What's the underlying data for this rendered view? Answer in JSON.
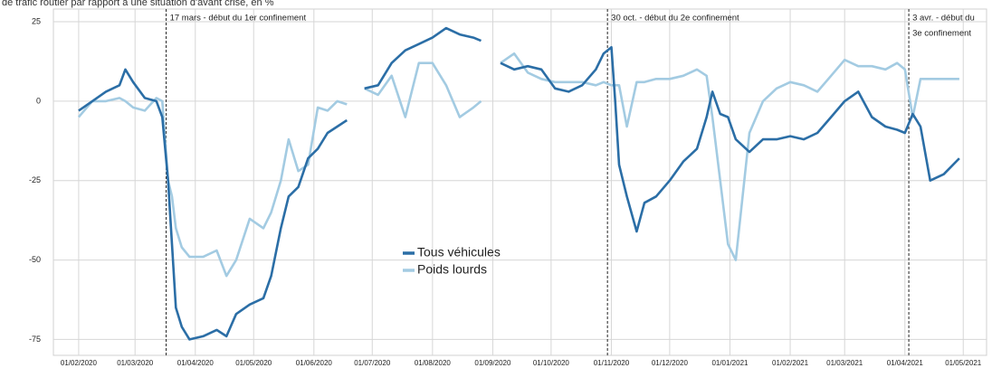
{
  "chart_data": {
    "type": "line",
    "title": "de trafic routier par rapport à une situation d'avant crise, en %",
    "x": [
      "2020-02-01",
      "2020-02-08",
      "2020-02-15",
      "2020-02-22",
      "2020-02-25",
      "2020-02-29",
      "2020-03-06",
      "2020-03-12",
      "2020-03-15",
      "2020-03-18",
      "2020-03-20",
      "2020-03-22",
      "2020-03-25",
      "2020-03-29",
      "2020-04-05",
      "2020-04-12",
      "2020-04-17",
      "2020-04-22",
      "2020-04-29",
      "2020-05-06",
      "2020-05-10",
      "2020-05-15",
      "2020-05-19",
      "2020-05-24",
      "2020-05-29",
      "2020-06-03",
      "2020-06-08",
      "2020-06-13",
      "2020-06-18",
      "2020-06-22",
      "2020-06-27",
      "2020-07-04",
      "2020-07-11",
      "2020-07-18",
      "2020-07-25",
      "2020-08-01",
      "2020-08-08",
      "2020-08-15",
      "2020-08-22",
      "2020-08-26",
      "2020-08-31",
      "2020-09-05",
      "2020-09-12",
      "2020-09-19",
      "2020-09-26",
      "2020-10-03",
      "2020-10-10",
      "2020-10-17",
      "2020-10-24",
      "2020-10-28",
      "2020-11-01",
      "2020-11-03",
      "2020-11-05",
      "2020-11-09",
      "2020-11-14",
      "2020-11-18",
      "2020-11-24",
      "2020-12-01",
      "2020-12-08",
      "2020-12-15",
      "2020-12-20",
      "2020-12-23",
      "2020-12-27",
      "2020-12-31",
      "2021-01-04",
      "2021-01-11",
      "2021-01-18",
      "2021-01-25",
      "2021-02-01",
      "2021-02-08",
      "2021-02-15",
      "2021-02-22",
      "2021-03-01",
      "2021-03-08",
      "2021-03-15",
      "2021-03-22",
      "2021-03-28",
      "2021-04-01",
      "2021-04-05",
      "2021-04-09",
      "2021-04-14",
      "2021-04-21",
      "2021-04-29"
    ],
    "series": [
      {
        "name": "Tous véhicules",
        "color": "#2b6ea6",
        "values": [
          -3,
          0,
          3,
          5,
          10,
          6,
          1,
          0,
          -5,
          -25,
          -45,
          -65,
          -71,
          -75,
          -74,
          -72,
          -74,
          -67,
          -64,
          -62,
          -55,
          -40,
          -30,
          -27,
          -18,
          -15,
          -10,
          -8,
          -6,
          null,
          4,
          5,
          12,
          16,
          18,
          20,
          23,
          21,
          20,
          19,
          null,
          12,
          10,
          11,
          10,
          4,
          3,
          5,
          10,
          15,
          17,
          0,
          -20,
          -30,
          -41,
          -32,
          -30,
          -25,
          -19,
          -15,
          -5,
          3,
          -4,
          -5,
          -12,
          -16,
          -12,
          -12,
          -11,
          -12,
          -10,
          -5,
          0,
          3,
          -5,
          -8,
          -9,
          -10,
          -4,
          -8,
          -25,
          -23,
          -18
        ]
      },
      {
        "name": "Poids lourds",
        "color": "#a3cbe2",
        "values": [
          -5,
          0,
          0,
          1,
          0,
          -2,
          -3,
          1,
          0,
          -25,
          -30,
          -40,
          -46,
          -49,
          -49,
          -47,
          -55,
          -50,
          -37,
          -40,
          -35,
          -25,
          -12,
          -22,
          -20,
          -2,
          -3,
          0,
          -1,
          null,
          4,
          2,
          8,
          -5,
          12,
          12,
          5,
          -5,
          -2,
          0,
          null,
          12,
          15,
          9,
          7,
          6,
          6,
          6,
          5,
          6,
          5,
          5,
          5,
          -8,
          6,
          6,
          7,
          7,
          8,
          10,
          8,
          -5,
          -25,
          -45,
          -50,
          -10,
          0,
          4,
          6,
          5,
          3,
          8,
          13,
          11,
          11,
          10,
          12,
          10,
          -5,
          7,
          7,
          7,
          7
        ]
      }
    ],
    "xlim": [
      "2020-01-19",
      "2021-05-13"
    ],
    "xticks": [
      {
        "value": "2020-02-01",
        "label": "01/02/2020"
      },
      {
        "value": "2020-03-01",
        "label": "01/03/2020"
      },
      {
        "value": "2020-04-01",
        "label": "01/04/2020"
      },
      {
        "value": "2020-05-01",
        "label": "01/05/2020"
      },
      {
        "value": "2020-06-01",
        "label": "01/06/2020"
      },
      {
        "value": "2020-07-01",
        "label": "01/07/2020"
      },
      {
        "value": "2020-08-01",
        "label": "01/08/2020"
      },
      {
        "value": "2020-09-01",
        "label": "01/09/2020"
      },
      {
        "value": "2020-10-01",
        "label": "01/10/2020"
      },
      {
        "value": "2020-11-01",
        "label": "01/11/2020"
      },
      {
        "value": "2020-12-01",
        "label": "01/12/2020"
      },
      {
        "value": "2021-01-01",
        "label": "01/01/2021"
      },
      {
        "value": "2021-02-01",
        "label": "01/02/2021"
      },
      {
        "value": "2021-03-01",
        "label": "01/03/2021"
      },
      {
        "value": "2021-04-01",
        "label": "01/04/2021"
      },
      {
        "value": "2021-05-01",
        "label": "01/05/2021"
      }
    ],
    "ylim": [
      -80,
      29
    ],
    "yticks": [
      25,
      0,
      -25,
      -50,
      -75
    ],
    "grid": true,
    "legend": "center",
    "annotations": [
      {
        "x": "2020-03-17",
        "text": [
          "17 mars - début du 1er confinement"
        ]
      },
      {
        "x": "2020-10-30",
        "text": [
          "30 oct. - début du 2e confinement"
        ]
      },
      {
        "x": "2021-04-03",
        "text": [
          "3 avr. - début du",
          "3e confinement"
        ]
      }
    ]
  }
}
